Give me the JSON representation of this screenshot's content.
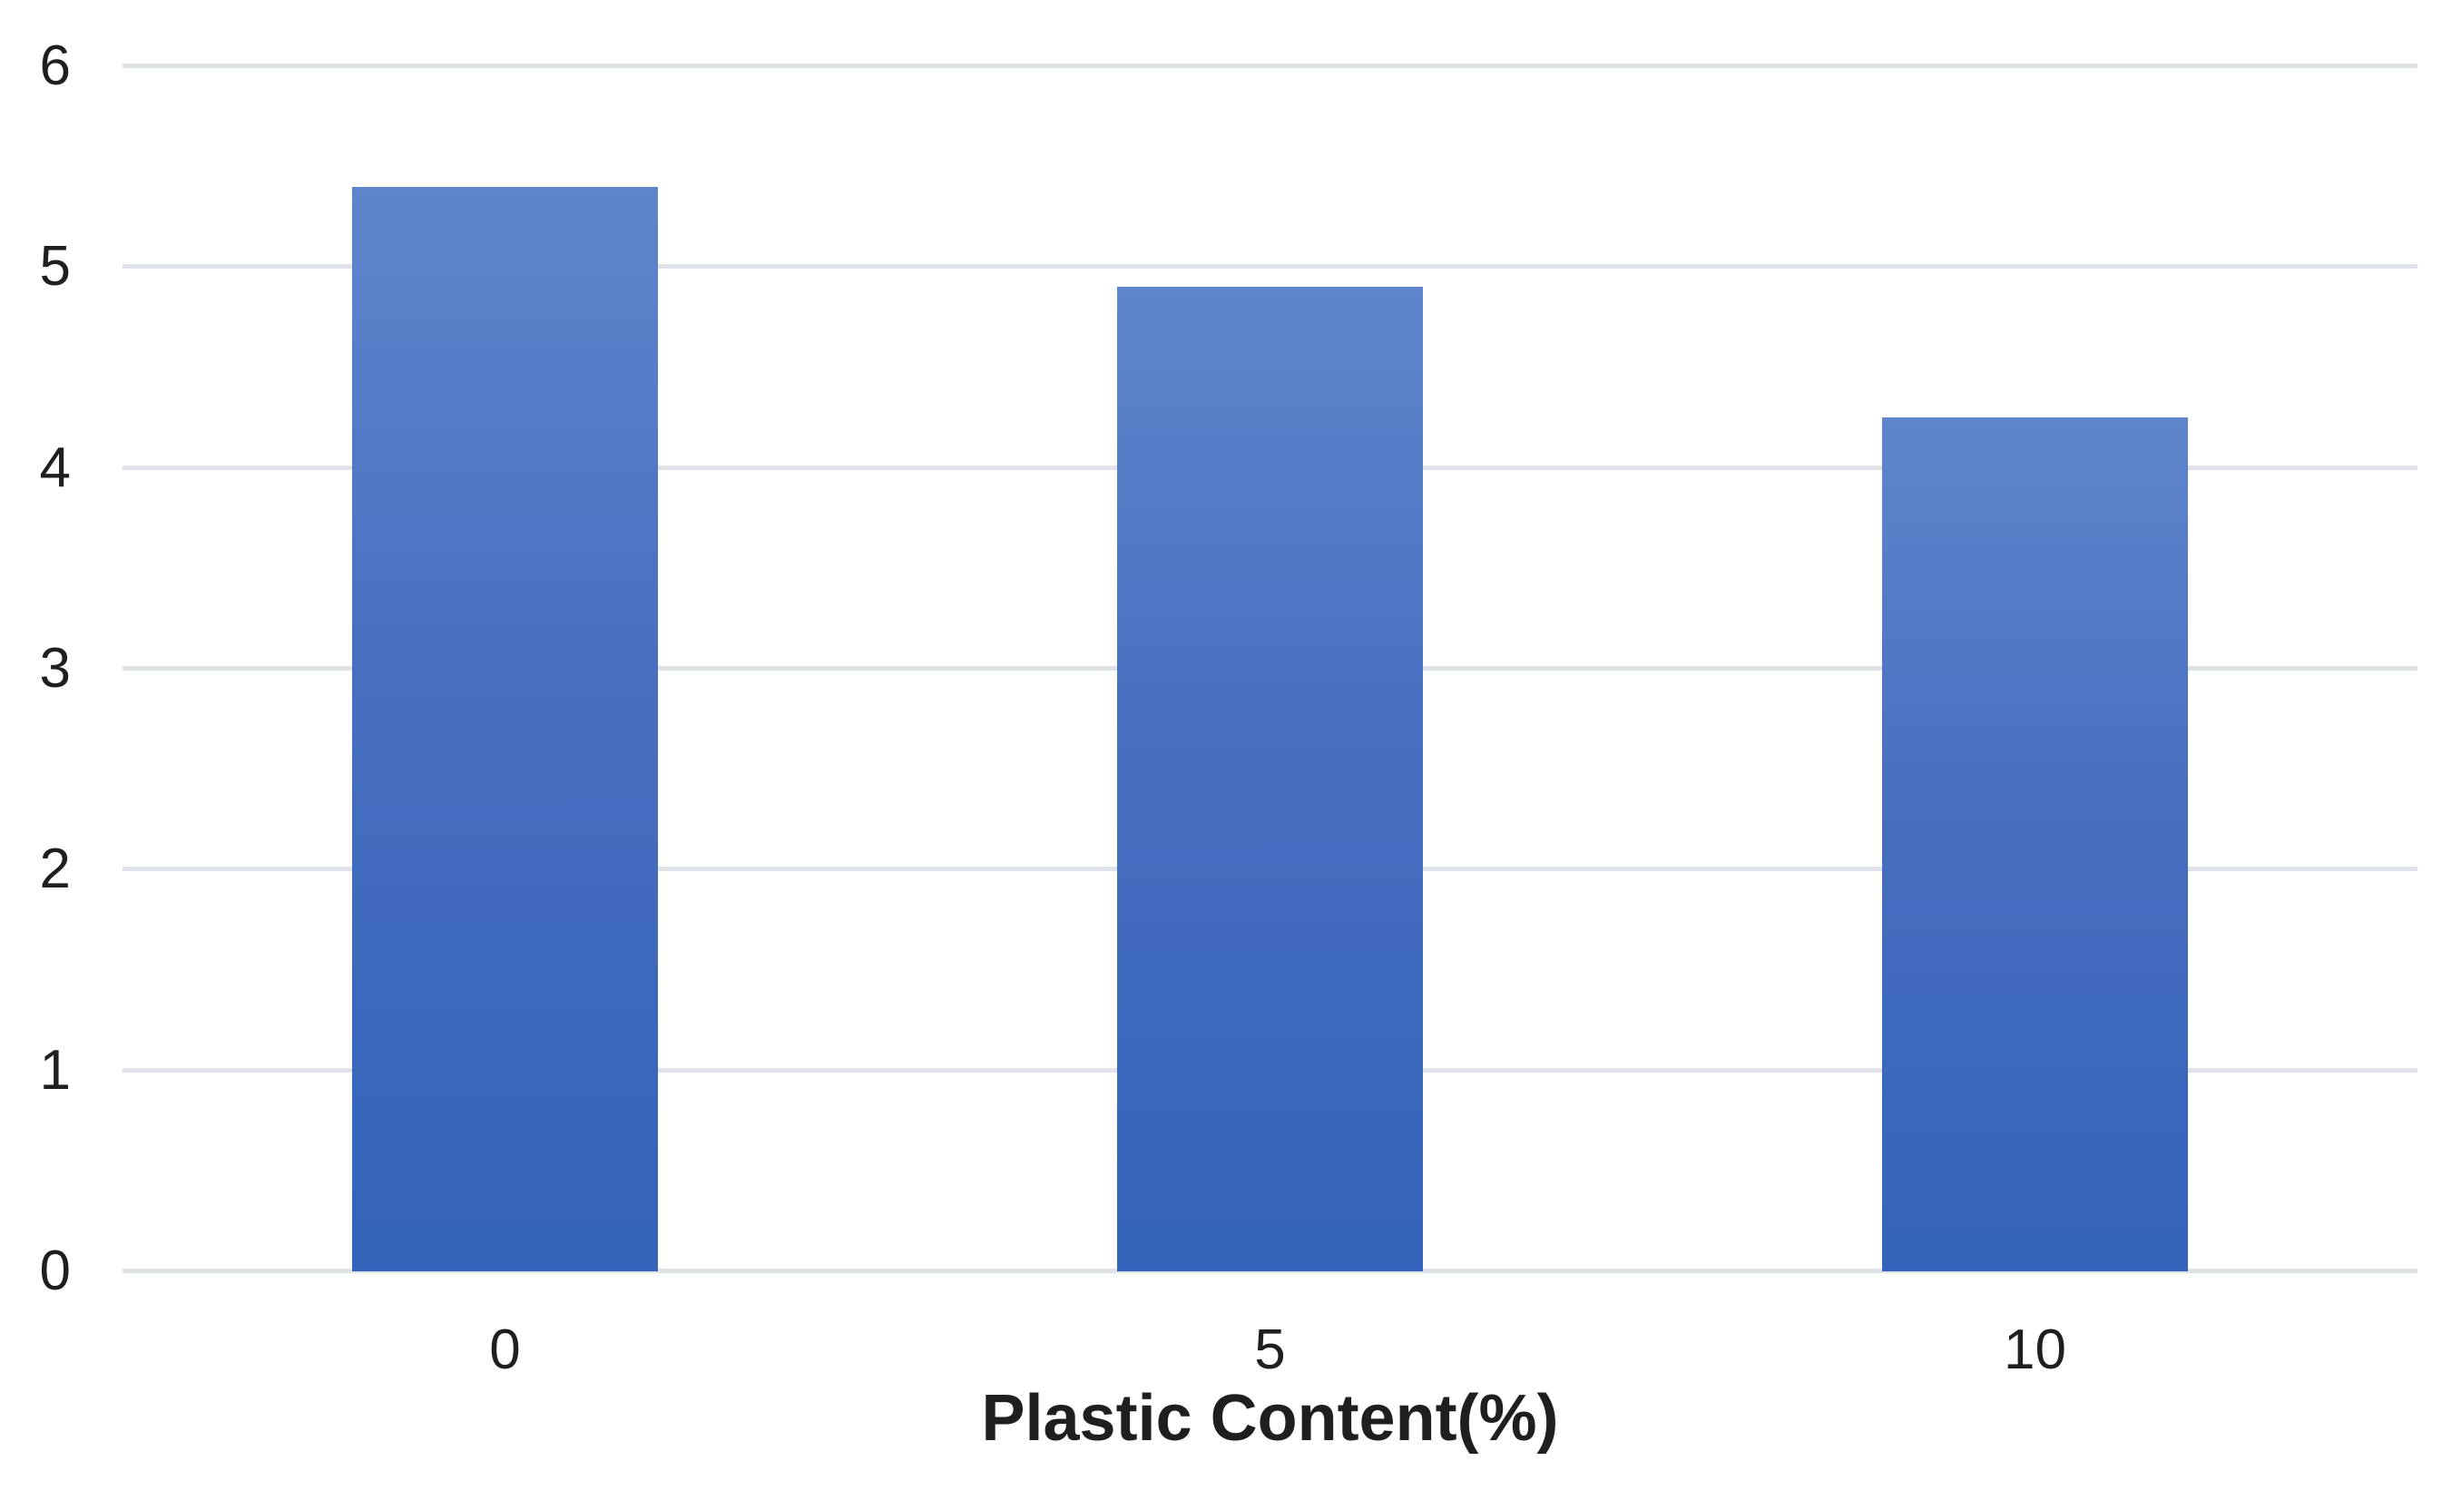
{
  "chart_data": {
    "type": "bar",
    "title": "",
    "categories": [
      "0",
      "5",
      "10"
    ],
    "values": [
      5.4,
      4.9,
      4.25
    ],
    "xlabel": "Plastic Content(%)",
    "ylabel": "",
    "ylim": [
      0,
      6
    ],
    "yticks": [
      0,
      1,
      2,
      3,
      4,
      5,
      6
    ],
    "grid": "horizontal",
    "legend": "none",
    "colors": {
      "bar_gradient_top": "#5F86CC",
      "bar_gradient_mid": "#476FC0",
      "bar_gradient_bottom": "#3363BA",
      "gridline": "#DFE3E8",
      "text": "#1F1F1F",
      "background": "#FFFFFF"
    }
  }
}
